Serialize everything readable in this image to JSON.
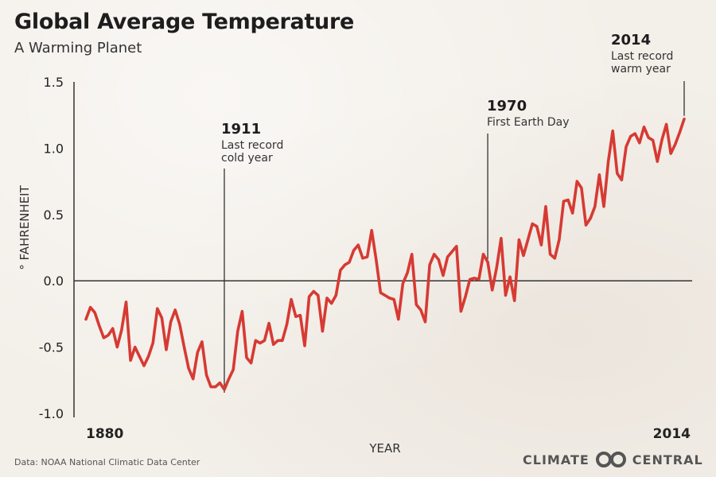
{
  "header": {
    "title": "Global Average Temperature",
    "subtitle": "A Warming Planet"
  },
  "footer": {
    "source": "Data: NOAA National Climatic Data Center",
    "logo_left": "CLIMATE",
    "logo_right": "CENTRAL"
  },
  "colors": {
    "series": "#d63a33",
    "axis": "#333333"
  },
  "chart_data": {
    "type": "line",
    "title": "Global Average Temperature",
    "subtitle": "A Warming Planet",
    "xlabel": "YEAR",
    "ylabel": "° FAHRENHEIT",
    "xlim": [
      1880,
      2014
    ],
    "ylim": [
      -1.0,
      1.5
    ],
    "yticks": [
      -1.0,
      -0.5,
      0.0,
      0.5,
      1.0,
      1.5
    ],
    "ytick_labels": [
      "-1.0",
      "-0.5",
      "0.0",
      "0.5",
      "1.0",
      "1.5"
    ],
    "xtick_labels": [
      "1880",
      "2014"
    ],
    "grid": false,
    "x": [
      1880,
      1881,
      1882,
      1883,
      1884,
      1885,
      1886,
      1887,
      1888,
      1889,
      1890,
      1891,
      1892,
      1893,
      1894,
      1895,
      1896,
      1897,
      1898,
      1899,
      1900,
      1901,
      1902,
      1903,
      1904,
      1905,
      1906,
      1907,
      1908,
      1909,
      1910,
      1911,
      1912,
      1913,
      1914,
      1915,
      1916,
      1917,
      1918,
      1919,
      1920,
      1921,
      1922,
      1923,
      1924,
      1925,
      1926,
      1927,
      1928,
      1929,
      1930,
      1931,
      1932,
      1933,
      1934,
      1935,
      1936,
      1937,
      1938,
      1939,
      1940,
      1941,
      1942,
      1943,
      1944,
      1945,
      1946,
      1947,
      1948,
      1949,
      1950,
      1951,
      1952,
      1953,
      1954,
      1955,
      1956,
      1957,
      1958,
      1959,
      1960,
      1961,
      1962,
      1963,
      1964,
      1965,
      1966,
      1967,
      1968,
      1969,
      1970,
      1971,
      1972,
      1973,
      1974,
      1975,
      1976,
      1977,
      1978,
      1979,
      1980,
      1981,
      1982,
      1983,
      1984,
      1985,
      1986,
      1987,
      1988,
      1989,
      1990,
      1991,
      1992,
      1993,
      1994,
      1995,
      1996,
      1997,
      1998,
      1999,
      2000,
      2001,
      2002,
      2003,
      2004,
      2005,
      2006,
      2007,
      2008,
      2009,
      2010,
      2011,
      2012,
      2013,
      2014
    ],
    "series": [
      {
        "values": [
          -0.29,
          -0.2,
          -0.24,
          -0.34,
          -0.43,
          -0.41,
          -0.36,
          -0.5,
          -0.37,
          -0.16,
          -0.6,
          -0.5,
          -0.57,
          -0.64,
          -0.57,
          -0.47,
          -0.21,
          -0.28,
          -0.52,
          -0.31,
          -0.22,
          -0.33,
          -0.5,
          -0.66,
          -0.74,
          -0.54,
          -0.46,
          -0.71,
          -0.8,
          -0.8,
          -0.77,
          -0.82,
          -0.74,
          -0.67,
          -0.38,
          -0.23,
          -0.58,
          -0.62,
          -0.45,
          -0.47,
          -0.45,
          -0.32,
          -0.48,
          -0.45,
          -0.45,
          -0.33,
          -0.14,
          -0.27,
          -0.26,
          -0.49,
          -0.12,
          -0.08,
          -0.11,
          -0.38,
          -0.13,
          -0.17,
          -0.11,
          0.08,
          0.12,
          0.14,
          0.23,
          0.27,
          0.17,
          0.18,
          0.38,
          0.16,
          -0.09,
          -0.11,
          -0.13,
          -0.14,
          -0.29,
          -0.02,
          0.06,
          0.2,
          -0.18,
          -0.22,
          -0.31,
          0.12,
          0.2,
          0.16,
          0.04,
          0.18,
          0.22,
          0.26,
          -0.23,
          -0.12,
          0.01,
          0.02,
          0.01,
          0.2,
          0.14,
          -0.07,
          0.1,
          0.32,
          -0.11,
          0.03,
          -0.15,
          0.31,
          0.19,
          0.31,
          0.43,
          0.41,
          0.27,
          0.56,
          0.2,
          0.17,
          0.31,
          0.6,
          0.61,
          0.51,
          0.75,
          0.7,
          0.42,
          0.47,
          0.56,
          0.8,
          0.56,
          0.9,
          1.13,
          0.81,
          0.76,
          1.01,
          1.09,
          1.11,
          1.04,
          1.16,
          1.08,
          1.06,
          0.9,
          1.06,
          1.18,
          0.96,
          1.03,
          1.12,
          1.22
        ]
      }
    ],
    "annotations": [
      {
        "year": "1911",
        "x": 1911,
        "text": [
          "Last record",
          "cold year"
        ]
      },
      {
        "year": "1970",
        "x": 1970,
        "text": [
          "First Earth Day"
        ]
      },
      {
        "year": "2014",
        "x": 2014,
        "text": [
          "Last record",
          "warm  year"
        ]
      }
    ]
  }
}
